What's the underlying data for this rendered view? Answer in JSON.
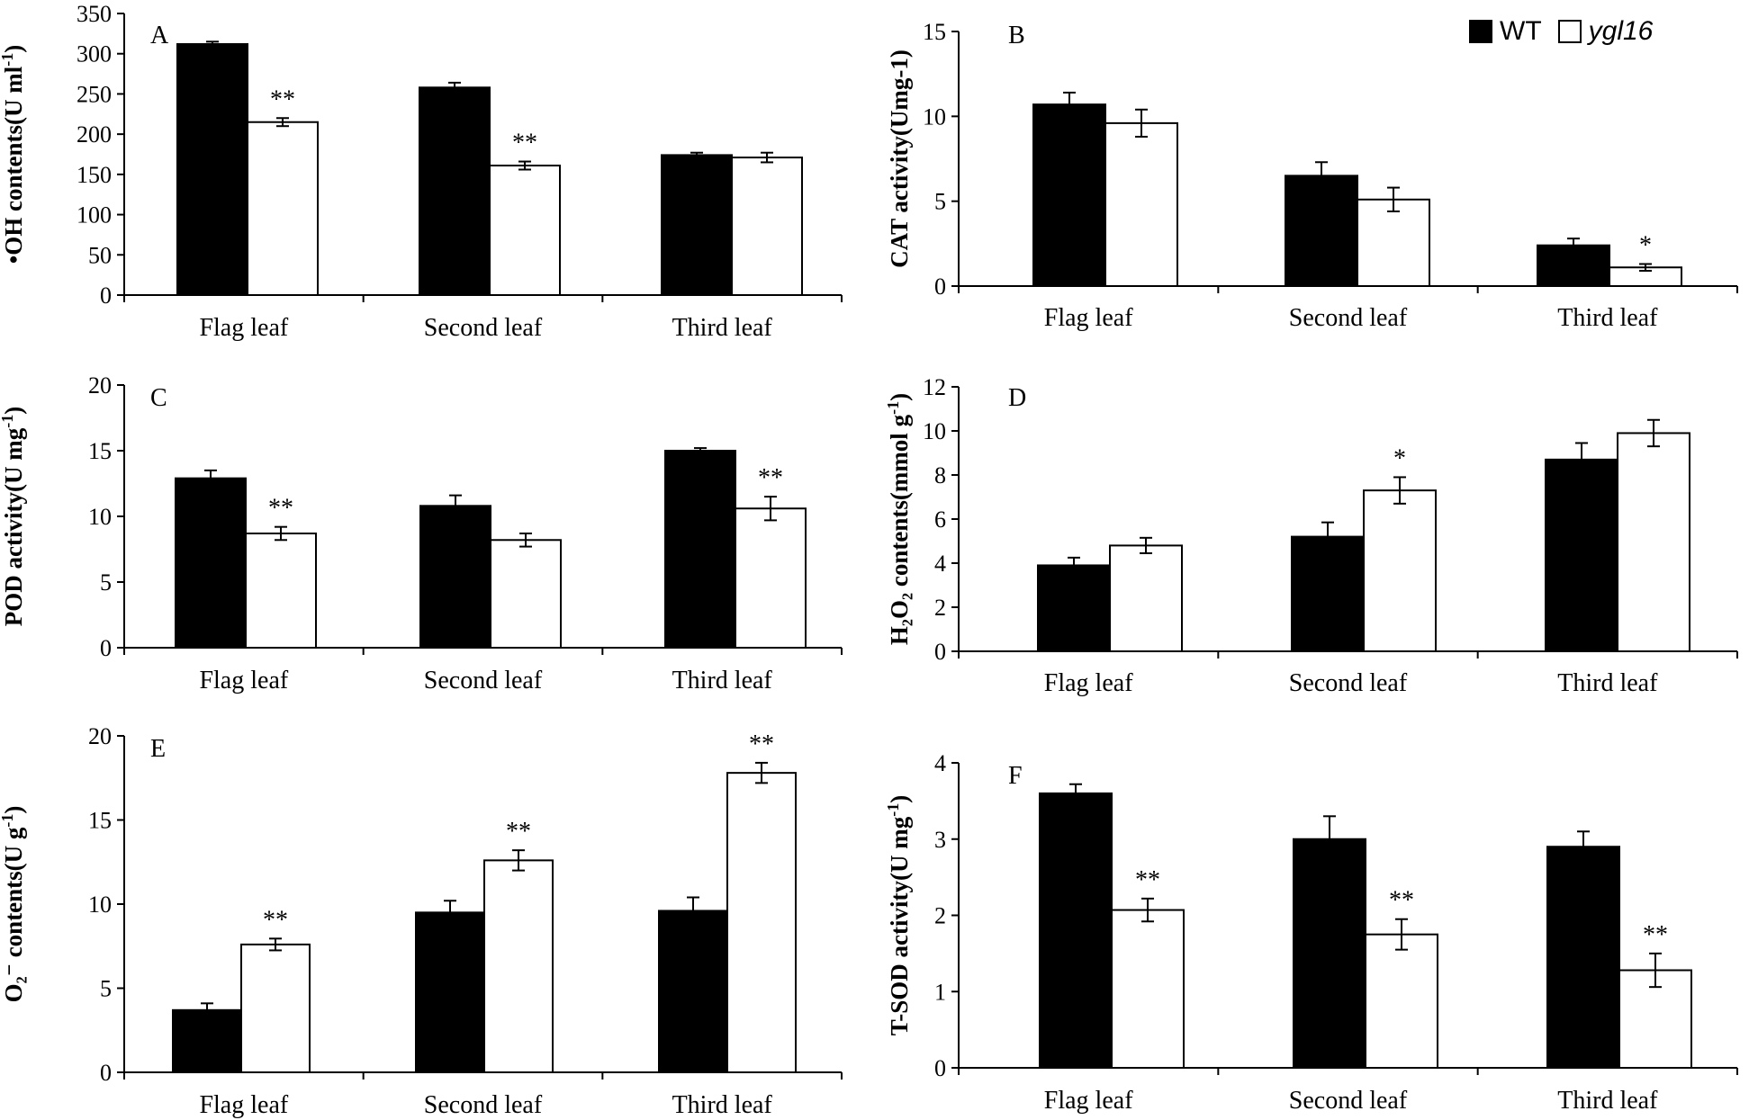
{
  "legend": {
    "wt_label": "WT",
    "mutant_label": "ygl16",
    "wt_color": "#000000",
    "mutant_color": "#ffffff"
  },
  "chart_data": [
    {
      "panel": "A",
      "type": "bar",
      "ylabel": "•OH contents(U ml",
      "ylabel_sup": "-1",
      "ylabel_tail": ")",
      "categories": [
        "Flag leaf",
        "Second leaf",
        "Third leaf"
      ],
      "ylim": [
        0,
        350
      ],
      "yticks": [
        0,
        50,
        100,
        150,
        200,
        250,
        300,
        350
      ],
      "series": [
        {
          "name": "WT",
          "values": [
            312,
            258,
            174
          ],
          "errors": [
            3,
            6,
            3
          ]
        },
        {
          "name": "ygl16",
          "values": [
            215,
            161,
            171
          ],
          "errors": [
            5,
            5,
            6
          ]
        }
      ],
      "annotations": [
        {
          "series": "ygl16",
          "category": "Flag leaf",
          "text": "**"
        },
        {
          "series": "ygl16",
          "category": "Second leaf",
          "text": "**"
        }
      ]
    },
    {
      "panel": "B",
      "type": "bar",
      "ylabel": "CAT activity(Umg-1)",
      "categories": [
        "Flag leaf",
        "Second leaf",
        "Third leaf"
      ],
      "ylim": [
        0,
        15
      ],
      "yticks": [
        0,
        5,
        10,
        15
      ],
      "series": [
        {
          "name": "WT",
          "values": [
            10.7,
            6.5,
            2.4
          ],
          "errors": [
            0.7,
            0.8,
            0.4
          ]
        },
        {
          "name": "ygl16",
          "values": [
            9.6,
            5.1,
            1.1
          ],
          "errors": [
            0.8,
            0.7,
            0.2
          ]
        }
      ],
      "annotations": [
        {
          "series": "ygl16",
          "category": "Third leaf",
          "text": "*"
        }
      ]
    },
    {
      "panel": "C",
      "type": "bar",
      "ylabel": "POD activity(U mg",
      "ylabel_sup": "-1",
      "ylabel_tail": ")",
      "categories": [
        "Flag leaf",
        "Second leaf",
        "Third leaf"
      ],
      "ylim": [
        0,
        20
      ],
      "yticks": [
        0,
        5,
        10,
        15,
        20
      ],
      "series": [
        {
          "name": "WT",
          "values": [
            12.9,
            10.8,
            15.0
          ],
          "errors": [
            0.6,
            0.8,
            0.2
          ]
        },
        {
          "name": "ygl16",
          "values": [
            8.7,
            8.2,
            10.6
          ],
          "errors": [
            0.5,
            0.5,
            0.9
          ]
        }
      ],
      "annotations": [
        {
          "series": "ygl16",
          "category": "Flag leaf",
          "text": "**"
        },
        {
          "series": "ygl16",
          "category": "Third leaf",
          "text": "**"
        }
      ]
    },
    {
      "panel": "D",
      "type": "bar",
      "ylabel": "H₂O₂ contents(mmol g",
      "ylabel_sup": "-1",
      "ylabel_tail": ")",
      "categories": [
        "Flag leaf",
        "Second leaf",
        "Third leaf"
      ],
      "ylim": [
        0,
        12
      ],
      "yticks": [
        0,
        2,
        4,
        6,
        8,
        10,
        12
      ],
      "series": [
        {
          "name": "WT",
          "values": [
            3.9,
            5.2,
            8.7
          ],
          "errors": [
            0.35,
            0.65,
            0.75
          ]
        },
        {
          "name": "ygl16",
          "values": [
            4.8,
            7.3,
            9.9
          ],
          "errors": [
            0.35,
            0.6,
            0.6
          ]
        }
      ],
      "annotations": [
        {
          "series": "ygl16",
          "category": "Second leaf",
          "text": "*"
        }
      ]
    },
    {
      "panel": "E",
      "type": "bar",
      "ylabel": "O₂⁻ contents(U g",
      "ylabel_sup": "-1",
      "ylabel_tail": ")",
      "categories": [
        "Flag leaf",
        "Second leaf",
        "Third leaf"
      ],
      "ylim": [
        0,
        20
      ],
      "yticks": [
        0,
        5,
        10,
        15,
        20
      ],
      "series": [
        {
          "name": "WT",
          "values": [
            3.7,
            9.5,
            9.6
          ],
          "errors": [
            0.4,
            0.7,
            0.8
          ]
        },
        {
          "name": "ygl16",
          "values": [
            7.6,
            12.6,
            17.8
          ],
          "errors": [
            0.35,
            0.6,
            0.6
          ]
        }
      ],
      "annotations": [
        {
          "series": "ygl16",
          "category": "Flag leaf",
          "text": "**"
        },
        {
          "series": "ygl16",
          "category": "Second leaf",
          "text": "**"
        },
        {
          "series": "ygl16",
          "category": "Third leaf",
          "text": "**"
        }
      ]
    },
    {
      "panel": "F",
      "type": "bar",
      "ylabel": "T-SOD activity(U mg",
      "ylabel_sup": "-1",
      "ylabel_tail": ")",
      "categories": [
        "Flag leaf",
        "Second leaf",
        "Third leaf"
      ],
      "ylim": [
        0,
        4
      ],
      "yticks": [
        0,
        1,
        2,
        3,
        4
      ],
      "series": [
        {
          "name": "WT",
          "values": [
            3.6,
            3.0,
            2.9
          ],
          "errors": [
            0.12,
            0.3,
            0.2
          ]
        },
        {
          "name": "ygl16",
          "values": [
            2.07,
            1.75,
            1.28
          ],
          "errors": [
            0.15,
            0.2,
            0.22
          ]
        }
      ],
      "annotations": [
        {
          "series": "ygl16",
          "category": "Flag leaf",
          "text": "**"
        },
        {
          "series": "ygl16",
          "category": "Second leaf",
          "text": "**"
        },
        {
          "series": "ygl16",
          "category": "Third leaf",
          "text": "**"
        }
      ]
    }
  ]
}
